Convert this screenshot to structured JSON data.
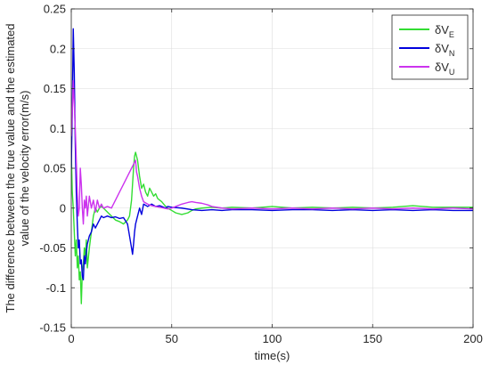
{
  "chart_data": {
    "type": "line",
    "xlabel": "time(s)",
    "ylabel_lines": [
      "The difference between the true value and the estimated",
      "value of the velocity error(m/s)"
    ],
    "xlim": [
      0,
      200
    ],
    "ylim": [
      -0.15,
      0.25
    ],
    "xticks": [
      0,
      50,
      100,
      150,
      200
    ],
    "xtick_labels": [
      "0",
      "50",
      "100",
      "150",
      "200"
    ],
    "yticks": [
      -0.15,
      -0.1,
      -0.05,
      0,
      0.05,
      0.1,
      0.15,
      0.2,
      0.25
    ],
    "ytick_labels": [
      "-0.15",
      "-0.1",
      "-0.05",
      "0",
      "0.05",
      "0.1",
      "0.15",
      "0.2",
      "0.25"
    ],
    "grid": true,
    "legend_position": "top-right",
    "series": [
      {
        "name_prefix": "δV",
        "name_sub": "E",
        "color": "#33dd33",
        "x": [
          0,
          0.5,
          1,
          1.5,
          2,
          2.5,
          3,
          3.5,
          4,
          4.5,
          5,
          5.5,
          6,
          6.5,
          7,
          7.5,
          8,
          9,
          10,
          11,
          12,
          13,
          14,
          15,
          16,
          18,
          20,
          22,
          24,
          26,
          28,
          29,
          30,
          30.5,
          31,
          31.5,
          32,
          33,
          34,
          35,
          36,
          37,
          38,
          39,
          40,
          41,
          42,
          43,
          44,
          45,
          46,
          47,
          48,
          50,
          52,
          55,
          58,
          60,
          62,
          65,
          70,
          75,
          80,
          90,
          100,
          110,
          120,
          130,
          140,
          150,
          160,
          165,
          170,
          175,
          180,
          190,
          200
        ],
        "values": [
          0.07,
          0.02,
          0.0,
          -0.03,
          -0.06,
          -0.04,
          -0.075,
          -0.06,
          -0.09,
          -0.08,
          -0.12,
          -0.08,
          -0.07,
          -0.05,
          -0.06,
          -0.04,
          -0.075,
          -0.05,
          -0.03,
          -0.01,
          0.0,
          -0.005,
          0.0,
          0.002,
          0.0,
          -0.005,
          -0.01,
          -0.015,
          -0.017,
          -0.02,
          -0.015,
          -0.01,
          0.01,
          0.03,
          0.05,
          0.065,
          0.07,
          0.06,
          0.04,
          0.025,
          0.03,
          0.02,
          0.015,
          0.025,
          0.02,
          0.015,
          0.018,
          0.012,
          0.01,
          0.008,
          0.005,
          0.002,
          0.0,
          -0.003,
          -0.006,
          -0.008,
          -0.006,
          -0.003,
          -0.001,
          0.0,
          0.001,
          0.0,
          0.001,
          0.0,
          0.002,
          0.0,
          0.001,
          0.0,
          0.001,
          0.0,
          0.001,
          0.002,
          0.003,
          0.002,
          0.001,
          0.001,
          0.001
        ]
      },
      {
        "name_prefix": "δV",
        "name_sub": "N",
        "color": "#0000dd",
        "x": [
          0,
          0.5,
          1,
          1.5,
          2,
          2.5,
          3,
          3.5,
          4,
          4.5,
          5,
          5.5,
          6,
          6.5,
          7,
          7.5,
          8,
          8.5,
          9,
          10,
          11,
          12,
          13,
          14,
          15,
          16,
          18,
          20,
          22,
          24,
          26,
          28,
          29,
          30,
          30.5,
          31,
          31.5,
          32,
          33,
          34,
          35,
          36,
          38,
          40,
          42,
          44,
          45,
          46,
          47,
          48,
          50,
          55,
          60,
          65,
          70,
          75,
          80,
          90,
          100,
          110,
          120,
          130,
          140,
          150,
          160,
          170,
          180,
          190,
          200
        ],
        "values": [
          0.05,
          0.12,
          0.225,
          0.17,
          0.08,
          0.02,
          -0.02,
          -0.05,
          -0.04,
          -0.07,
          -0.065,
          -0.085,
          -0.09,
          -0.06,
          -0.07,
          -0.055,
          -0.045,
          -0.04,
          -0.035,
          -0.03,
          -0.02,
          -0.025,
          -0.02,
          -0.015,
          -0.01,
          -0.012,
          -0.01,
          -0.012,
          -0.011,
          -0.013,
          -0.012,
          -0.02,
          -0.035,
          -0.05,
          -0.058,
          -0.045,
          -0.03,
          -0.02,
          -0.01,
          0.0,
          -0.008,
          0.005,
          0.002,
          0.005,
          0.002,
          0.003,
          0.002,
          0.001,
          0.0,
          0.002,
          0.001,
          0.0,
          -0.002,
          -0.003,
          -0.002,
          -0.003,
          -0.002,
          -0.002,
          -0.003,
          -0.002,
          -0.002,
          -0.003,
          -0.002,
          -0.003,
          -0.002,
          -0.003,
          -0.002,
          -0.003,
          -0.003
        ]
      },
      {
        "name_prefix": "δV",
        "name_sub": "U",
        "color": "#cc33ee",
        "x": [
          0,
          0.5,
          1,
          1.5,
          2,
          2.5,
          3,
          3.5,
          4,
          4.5,
          5,
          5.5,
          6,
          6.5,
          7,
          7.5,
          8,
          9,
          10,
          11,
          12,
          13,
          14,
          15,
          16,
          18,
          20,
          22,
          24,
          26,
          28,
          30,
          31,
          32,
          32.5,
          33,
          34,
          35,
          36,
          38,
          40,
          42,
          44,
          46,
          48,
          50,
          52,
          55,
          58,
          60,
          62,
          65,
          68,
          70,
          75,
          80,
          90,
          100,
          110,
          120,
          130,
          140,
          150,
          160,
          170,
          180,
          190,
          200
        ],
        "values": [
          0.09,
          0.12,
          0.16,
          0.13,
          0.1,
          0.06,
          0.02,
          -0.01,
          0.0,
          0.05,
          0.03,
          0.0,
          -0.02,
          0.01,
          0.0,
          0.015,
          -0.01,
          0.015,
          0.0,
          0.01,
          -0.005,
          0.01,
          0.0,
          0.005,
          0.0,
          0.002,
          0.0,
          0.01,
          0.02,
          0.03,
          0.04,
          0.05,
          0.055,
          0.06,
          0.045,
          0.04,
          0.025,
          0.015,
          0.008,
          0.005,
          0.003,
          0.002,
          0.001,
          0.0,
          -0.001,
          0.0,
          0.002,
          0.005,
          0.007,
          0.008,
          0.007,
          0.006,
          0.004,
          0.002,
          0.0,
          -0.001,
          0.0,
          -0.001,
          0.0,
          -0.001,
          0.0,
          -0.001,
          0.0,
          -0.001,
          0.0,
          -0.001,
          0.0,
          -0.001
        ]
      }
    ]
  }
}
